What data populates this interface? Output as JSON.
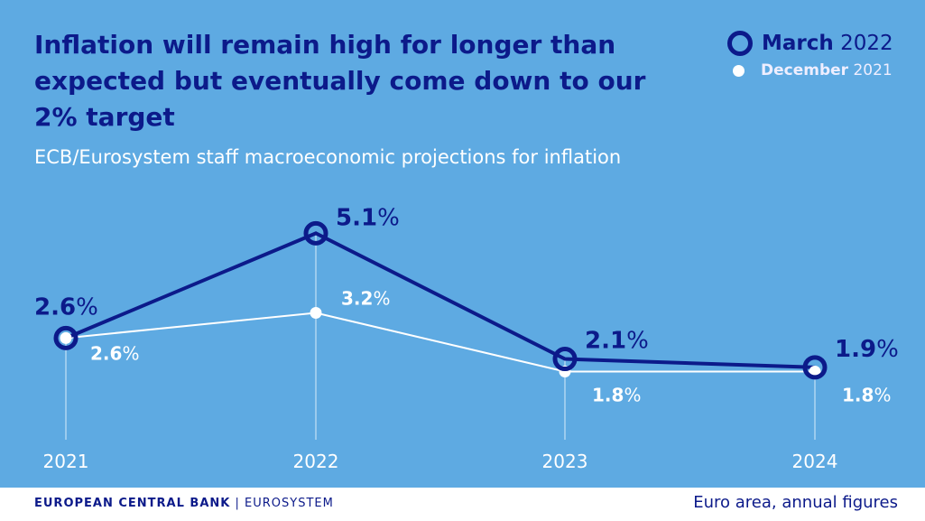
{
  "title": "Inflation will remain high for longer than expected but eventually come down to our 2% target",
  "subtitle": "ECB/Eurosystem staff macroeconomic projections for inflation",
  "footer": {
    "bank": "EUROPEAN CENTRAL BANK",
    "separator": "|",
    "system": "EUROSYSTEM",
    "note": "Euro area, annual figures"
  },
  "colors": {
    "background": "#5eaae2",
    "march": "#0c1a8a",
    "december": "#ffffff"
  },
  "chart_data": {
    "type": "line",
    "title": "Inflation will remain high for longer than expected but eventually come down to our 2% target",
    "subtitle": "ECB/Eurosystem staff macroeconomic projections for inflation",
    "categories": [
      "2021",
      "2022",
      "2023",
      "2024"
    ],
    "series": [
      {
        "name_bold": "March",
        "name_rest": "2022",
        "values": [
          2.6,
          5.1,
          2.1,
          1.9
        ],
        "labels": [
          "2.6%",
          "5.1%",
          "2.1%",
          "1.9%"
        ],
        "color": "#0c1a8a",
        "marker": "ring"
      },
      {
        "name_bold": "December",
        "name_rest": "2021",
        "values": [
          2.6,
          3.2,
          1.8,
          1.8
        ],
        "labels": [
          "2.6%",
          "3.2%",
          "1.8%",
          "1.8%"
        ],
        "color": "#ffffff",
        "marker": "dot"
      }
    ],
    "legend": "top-right",
    "grid": false
  }
}
